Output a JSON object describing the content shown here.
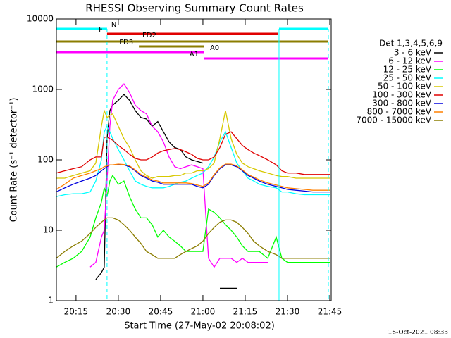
{
  "chart_data": {
    "type": "line",
    "title": "RHESSI Observing Summary Count Rates",
    "xlabel": "Start Time (27-May-02 20:08:02)",
    "ylabel": "Count Rate (s⁻¹ detector⁻¹)",
    "legend_title": "Det 1,3,4,5,6,9",
    "legend": "outside-right",
    "timestamp": "16-Oct-2021 08:33",
    "log_y": true,
    "xlim": [
      8.03,
      105.5
    ],
    "ylim": [
      1,
      10000
    ],
    "yticks": [
      1,
      10,
      100,
      1000,
      10000
    ],
    "xticks": [
      {
        "value": 15,
        "label": "20:15"
      },
      {
        "value": 30,
        "label": "20:30"
      },
      {
        "value": 45,
        "label": "20:45"
      },
      {
        "value": 60,
        "label": "21:00"
      },
      {
        "value": 75,
        "label": "21:15"
      },
      {
        "value": 90,
        "label": "21:30"
      },
      {
        "value": 105,
        "label": "21:45"
      }
    ],
    "x": [
      8,
      11,
      14,
      17,
      20,
      22,
      24,
      25,
      26,
      27,
      28,
      30,
      32,
      34,
      36,
      38,
      40,
      42,
      44,
      46,
      48,
      50,
      52,
      54,
      56,
      58,
      60,
      62,
      64,
      66,
      68,
      70,
      72,
      74,
      76,
      78,
      80,
      83,
      86,
      88,
      90,
      93,
      96,
      99,
      102,
      105
    ],
    "series": [
      {
        "name": "3 - 6 keV",
        "color": "#000000",
        "values": [
          null,
          null,
          null,
          null,
          null,
          2,
          2.5,
          3,
          200,
          500,
          600,
          700,
          850,
          700,
          500,
          400,
          380,
          300,
          350,
          250,
          180,
          150,
          140,
          110,
          100,
          95,
          90,
          null,
          null,
          1.5,
          1.5,
          1.5,
          1.5,
          null,
          null,
          null,
          null,
          null,
          null,
          null,
          null,
          null,
          null,
          null,
          null,
          null
        ]
      },
      {
        "name": "6 - 12 keV",
        "color": "#ff00ff",
        "values": [
          null,
          null,
          null,
          null,
          3,
          3.5,
          8,
          10,
          50,
          300,
          700,
          1000,
          1200,
          900,
          600,
          500,
          450,
          300,
          250,
          180,
          110,
          80,
          75,
          80,
          85,
          80,
          75,
          4,
          3,
          4,
          4,
          4,
          3.5,
          4,
          3.5,
          3.5,
          3.5,
          3.5,
          null,
          null,
          null,
          null,
          null,
          null,
          null,
          null
        ]
      },
      {
        "name": "12 - 25 keV",
        "color": "#00ff00",
        "values": [
          3,
          3.5,
          4,
          5,
          8,
          15,
          25,
          40,
          30,
          50,
          60,
          45,
          50,
          30,
          20,
          15,
          15,
          12,
          8,
          10,
          8,
          7,
          6,
          5,
          5,
          5,
          5,
          20,
          18,
          15,
          12,
          10,
          8,
          6,
          5,
          5,
          5,
          4,
          8,
          4,
          3.5,
          3.5,
          3.5,
          3.5,
          3.5,
          3.5
        ]
      },
      {
        "name": "25 - 50 keV",
        "color": "#00ffff",
        "values": [
          30,
          32,
          33,
          33,
          35,
          50,
          100,
          250,
          300,
          250,
          200,
          140,
          100,
          70,
          50,
          45,
          42,
          40,
          40,
          40,
          42,
          45,
          48,
          50,
          55,
          60,
          65,
          80,
          110,
          180,
          250,
          150,
          90,
          70,
          55,
          50,
          45,
          42,
          40,
          35,
          35,
          33,
          32,
          32,
          32,
          32
        ]
      },
      {
        "name": "50 - 100 keV",
        "color": "#d7c800",
        "values": [
          55,
          55,
          60,
          65,
          70,
          90,
          300,
          500,
          400,
          430,
          450,
          300,
          200,
          150,
          100,
          70,
          60,
          55,
          58,
          58,
          58,
          60,
          60,
          65,
          65,
          70,
          70,
          75,
          90,
          200,
          500,
          200,
          120,
          90,
          80,
          75,
          70,
          65,
          60,
          58,
          58,
          55,
          55,
          55,
          55,
          55
        ]
      },
      {
        "name": "100 - 300 keV",
        "color": "#e00000",
        "values": [
          65,
          70,
          75,
          80,
          100,
          110,
          110,
          210,
          210,
          200,
          190,
          160,
          140,
          120,
          105,
          100,
          100,
          110,
          125,
          135,
          140,
          145,
          140,
          130,
          120,
          105,
          100,
          100,
          110,
          150,
          230,
          250,
          200,
          160,
          140,
          125,
          115,
          100,
          85,
          70,
          65,
          65,
          62,
          62,
          62,
          62
        ]
      },
      {
        "name": "300 - 800 keV",
        "color": "#0000dd",
        "values": [
          35,
          40,
          45,
          50,
          55,
          60,
          70,
          75,
          80,
          85,
          85,
          85,
          85,
          80,
          70,
          60,
          55,
          50,
          48,
          45,
          45,
          45,
          45,
          45,
          45,
          42,
          40,
          45,
          60,
          75,
          85,
          85,
          80,
          70,
          60,
          55,
          50,
          45,
          42,
          40,
          38,
          37,
          36,
          35,
          35,
          35
        ]
      },
      {
        "name": "800 - 7000 keV",
        "color": "#ff8000",
        "values": [
          38,
          45,
          55,
          60,
          65,
          70,
          75,
          80,
          82,
          85,
          85,
          87,
          86,
          82,
          72,
          62,
          57,
          52,
          50,
          47,
          47,
          47,
          47,
          47,
          46,
          44,
          42,
          47,
          62,
          77,
          87,
          87,
          82,
          72,
          62,
          57,
          52,
          47,
          44,
          42,
          40,
          39,
          38,
          37,
          37,
          37
        ]
      },
      {
        "name": "7000 - 15000 keV",
        "color": "#8b7d00",
        "values": [
          4,
          5,
          6,
          7,
          9,
          11,
          13,
          14,
          15,
          15,
          15,
          14,
          12,
          10,
          8,
          6.5,
          5,
          4.5,
          4,
          4,
          4,
          4,
          4.5,
          5,
          5.5,
          6,
          7,
          9,
          11,
          13,
          14,
          14,
          13,
          11,
          9,
          7,
          6,
          5,
          4.5,
          4,
          4,
          4,
          4,
          4,
          4,
          4
        ]
      }
    ],
    "flags": [
      {
        "label": "N",
        "color": "#00ffff",
        "segments": [
          [
            8.03,
            26
          ],
          [
            87,
            104.5
          ]
        ]
      },
      {
        "label": "F",
        "color": "#e00000",
        "segments": [
          [
            26,
            86.5
          ]
        ]
      },
      {
        "label": "FD2",
        "color": "#8b7d00",
        "segments": [
          [
            8.03,
            104.5
          ]
        ]
      },
      {
        "label": "FD3",
        "color": "#8b7d00",
        "segments": [
          [
            37.3,
            60.5
          ]
        ]
      },
      {
        "label": "A0",
        "color": "#ff00ff",
        "segments": [
          [
            8.03,
            60.5
          ]
        ]
      },
      {
        "label": "A1",
        "color": "#ff00ff",
        "segments": [
          [
            60.5,
            104.5
          ]
        ]
      }
    ]
  }
}
